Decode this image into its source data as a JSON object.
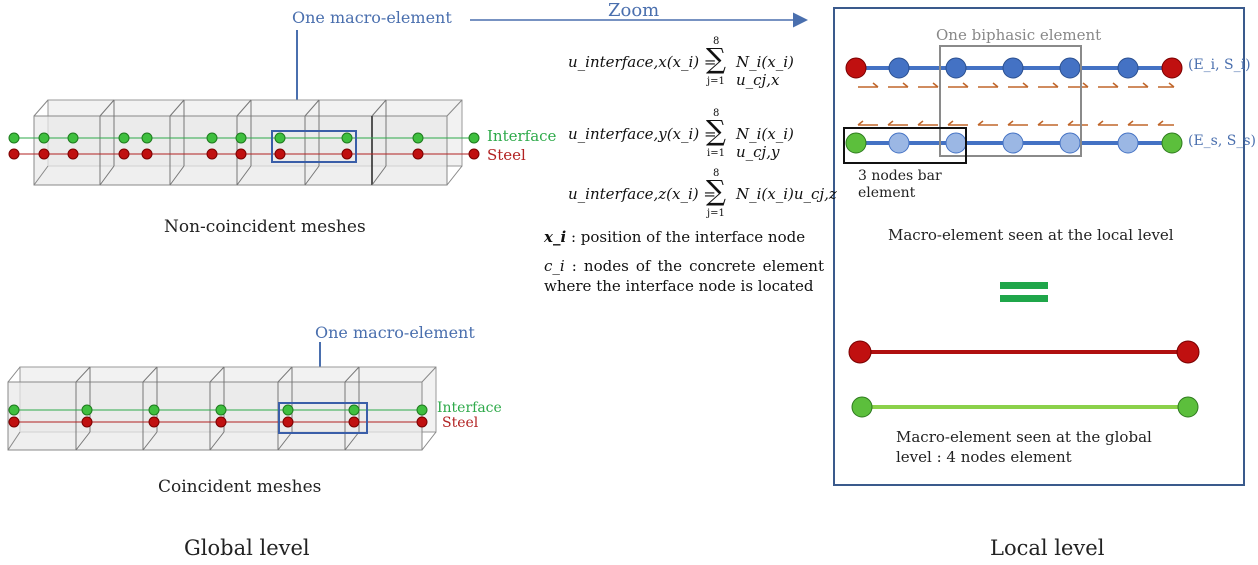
{
  "labels": {
    "macro_element_top": "One macro-element",
    "macro_element_bottom": "One macro-element",
    "zoom": "Zoom",
    "interface_top": "Interface",
    "steel_top": "Steel",
    "interface_bottom": "Interface",
    "steel_bottom": "Steel",
    "non_coincident": "Non-coincident meshes",
    "coincident": "Coincident meshes",
    "global_level": "Global level",
    "local_level": "Local level",
    "biphasic": "One biphasic element",
    "bar_element": "3 nodes bar element",
    "macro_local": "Macro-element seen at the local level",
    "macro_global": "Macro-element seen at the global level : 4 nodes element",
    "interface_props": "(E_i, S_i)",
    "steel_props": "(E_s, S_s)"
  },
  "equations": {
    "x": {
      "lhs": "u_interface,x(x_i) =",
      "sum": "∑",
      "upper": "8",
      "lower": "j=1",
      "rhs": "N_i(x_i) u_cj,x"
    },
    "y": {
      "lhs": "u_interface,y(x_i) =",
      "sum": "∑",
      "upper": "8",
      "lower": "i=1",
      "rhs": "N_i(x_i) u_cj,y"
    },
    "z": {
      "lhs": "u_interface,z(x_i) =",
      "sum": "∑",
      "upper": "8",
      "lower": "j=1",
      "rhs": "N_i(x_i)u_cj,z"
    }
  },
  "definitions": {
    "xi_symbol": "x_i",
    "xi_text": ": position of the interface node",
    "ci_symbol": "c_i",
    "ci_text": ": nodes of the concrete element where the interface node is located"
  },
  "colors": {
    "interface_green": "#2eaa4a",
    "steel_red": "#b22222",
    "highlight_blue": "#4a6fae",
    "bar_blue": "#4472c4",
    "arrow_orange": "#c0662a"
  }
}
